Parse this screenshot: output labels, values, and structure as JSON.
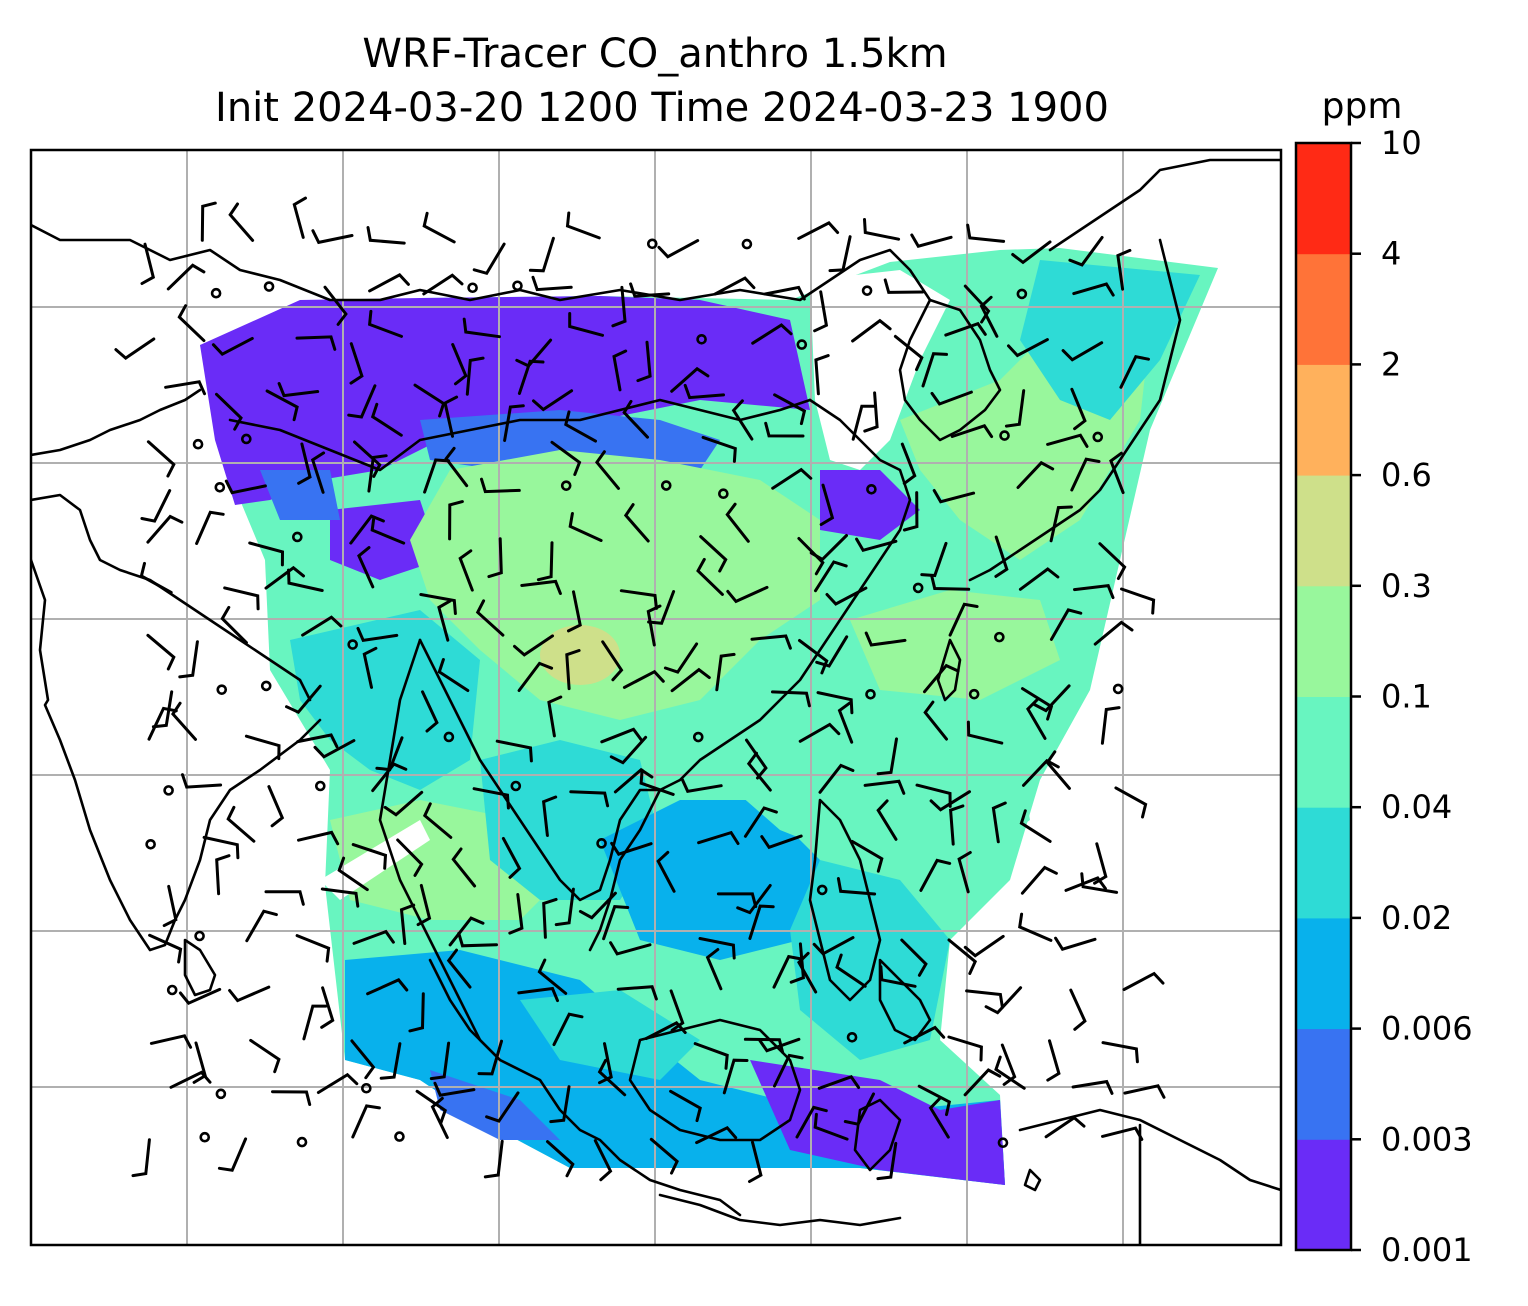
{
  "title": {
    "line1": "WRF-Tracer CO_anthro 1.5km",
    "line2": "Init 2024-03-20 1200 Time 2024-03-23 1900"
  },
  "colorbar": {
    "unit": "ppm",
    "ticks": [
      "0.001",
      "0.003",
      "0.006",
      "0.02",
      "0.04",
      "0.1",
      "0.3",
      "0.6",
      "2",
      "4",
      "10"
    ],
    "colors": [
      "#6a2cf7",
      "#3873f2",
      "#08b1ec",
      "#2edbd6",
      "#68f5c0",
      "#98f79c",
      "#cee08a",
      "#ffb15c",
      "#ff7338",
      "#ff2a15"
    ]
  },
  "chart_data": {
    "type": "heatmap",
    "variable": "CO_anthro",
    "unit": "ppm",
    "levels": [
      0.001,
      0.003,
      0.006,
      0.02,
      0.04,
      0.1,
      0.3,
      0.6,
      2,
      4,
      10
    ],
    "overlays": [
      "coastlines",
      "wind barbs",
      "graticule"
    ],
    "grid": true
  }
}
